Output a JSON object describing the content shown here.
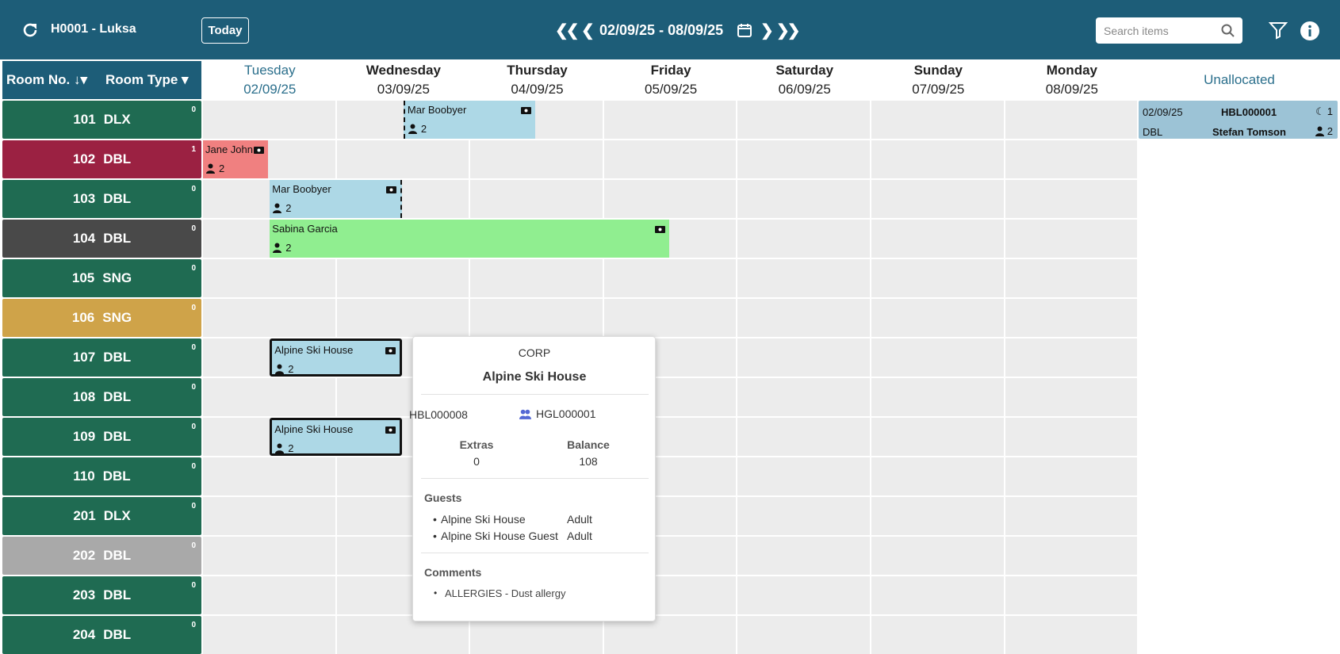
{
  "header": {
    "hotel": "H0001 - Luksa",
    "today_button": "Today",
    "date_range": "02/09/25 - 08/09/25",
    "search_placeholder": "Search items"
  },
  "columns": {
    "room_no": "Room No.",
    "room_type": "Room Type",
    "unallocated": "Unallocated",
    "days": [
      {
        "name": "Tuesday",
        "date": "02/09/25"
      },
      {
        "name": "Wednesday",
        "date": "03/09/25"
      },
      {
        "name": "Thursday",
        "date": "04/09/25"
      },
      {
        "name": "Friday",
        "date": "05/09/25"
      },
      {
        "name": "Saturday",
        "date": "06/09/25"
      },
      {
        "name": "Sunday",
        "date": "07/09/25"
      },
      {
        "name": "Monday",
        "date": "08/09/25"
      }
    ]
  },
  "rooms": [
    {
      "number": "101",
      "type": "DLX",
      "count": "0",
      "color": "#1f6b52",
      "bookings": [
        {
          "name": "Mar Boobyer",
          "guests": "2",
          "color": "#add8e6"
        }
      ]
    },
    {
      "number": "102",
      "type": "DBL",
      "count": "1",
      "color": "#9b2142",
      "bookings": [
        {
          "name": "Jane John",
          "guests": "2",
          "color": "#f08080"
        }
      ]
    },
    {
      "number": "103",
      "type": "DBL",
      "count": "0",
      "color": "#1f6b52",
      "bookings": [
        {
          "name": "Mar Boobyer",
          "guests": "2",
          "color": "#add8e6"
        }
      ]
    },
    {
      "number": "104",
      "type": "DBL",
      "count": "0",
      "color": "#494949",
      "bookings": [
        {
          "name": "Sabina Garcia",
          "guests": "2",
          "color": "#90ee90"
        }
      ]
    },
    {
      "number": "105",
      "type": "SNG",
      "count": "0",
      "color": "#1f6b52",
      "bookings": []
    },
    {
      "number": "106",
      "type": "SNG",
      "count": "0",
      "color": "#cfa349",
      "bookings": []
    },
    {
      "number": "107",
      "type": "DBL",
      "count": "0",
      "color": "#1f6b52",
      "bookings": [
        {
          "name": "Alpine Ski House",
          "guests": "2",
          "color": "#add8e6"
        }
      ]
    },
    {
      "number": "108",
      "type": "DBL",
      "count": "0",
      "color": "#1f6b52",
      "bookings": []
    },
    {
      "number": "109",
      "type": "DBL",
      "count": "0",
      "color": "#1f6b52",
      "bookings": [
        {
          "name": "Alpine Ski House",
          "guests": "2",
          "color": "#add8e6"
        }
      ]
    },
    {
      "number": "110",
      "type": "DBL",
      "count": "0",
      "color": "#1f6b52",
      "bookings": []
    },
    {
      "number": "201",
      "type": "DLX",
      "count": "0",
      "color": "#1f6b52",
      "bookings": []
    },
    {
      "number": "202",
      "type": "DBL",
      "count": "0",
      "color": "#a9a9a9",
      "bookings": []
    },
    {
      "number": "203",
      "type": "DBL",
      "count": "0",
      "color": "#1f6b52",
      "bookings": []
    },
    {
      "number": "204",
      "type": "DBL",
      "count": "0",
      "color": "#1f6b52",
      "bookings": []
    }
  ],
  "unallocated": [
    {
      "date": "02/09/25",
      "reference": "HBL000001",
      "nights": "1",
      "room_type": "DBL",
      "guest": "Stefan Tomson",
      "guests": "2"
    }
  ],
  "popup": {
    "category": "CORP",
    "name": "Alpine Ski House",
    "booking_ref": "HBL000008",
    "group_ref": "HGL000001",
    "extras_label": "Extras",
    "extras": "0",
    "balance_label": "Balance",
    "balance": "108",
    "guests_title": "Guests",
    "guests": [
      {
        "name": "Alpine Ski House",
        "type": "Adult"
      },
      {
        "name": "Alpine Ski House Guest",
        "type": "Adult"
      }
    ],
    "comments_title": "Comments",
    "comments": [
      "ALLERGIES - Dust allergy"
    ]
  }
}
